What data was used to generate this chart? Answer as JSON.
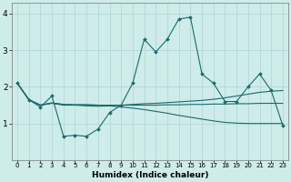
{
  "xlabel": "Humidex (Indice chaleur)",
  "bg_color": "#ceecea",
  "grid_color": "#aed4d2",
  "line_color": "#1a6b6b",
  "xlim": [
    -0.5,
    23.5
  ],
  "ylim": [
    0,
    4.3
  ],
  "xticks": [
    0,
    1,
    2,
    3,
    4,
    5,
    6,
    7,
    8,
    9,
    10,
    11,
    12,
    13,
    14,
    15,
    16,
    17,
    18,
    19,
    20,
    21,
    22,
    23
  ],
  "yticks": [
    1,
    2,
    3,
    4
  ],
  "series_main": [
    2.1,
    1.65,
    1.45,
    1.75,
    0.65,
    0.68,
    0.65,
    0.85,
    1.3,
    1.5,
    2.1,
    3.3,
    2.95,
    3.3,
    3.85,
    3.9,
    2.35,
    2.1,
    1.6,
    1.6,
    2.0,
    2.35,
    1.9,
    0.95
  ],
  "series_smooth": [
    [
      2.1,
      1.65,
      1.5,
      1.55,
      1.5,
      1.5,
      1.48,
      1.47,
      1.48,
      1.5,
      1.52,
      1.54,
      1.55,
      1.57,
      1.59,
      1.61,
      1.63,
      1.66,
      1.7,
      1.75,
      1.8,
      1.85,
      1.88,
      1.9
    ],
    [
      2.1,
      1.65,
      1.5,
      1.56,
      1.52,
      1.51,
      1.51,
      1.5,
      1.5,
      1.5,
      1.5,
      1.5,
      1.5,
      1.51,
      1.51,
      1.52,
      1.52,
      1.53,
      1.53,
      1.54,
      1.54,
      1.55,
      1.55,
      1.55
    ],
    [
      2.1,
      1.65,
      1.5,
      1.56,
      1.52,
      1.51,
      1.51,
      1.5,
      1.48,
      1.45,
      1.42,
      1.38,
      1.33,
      1.28,
      1.22,
      1.17,
      1.12,
      1.07,
      1.03,
      1.01,
      1.0,
      1.0,
      1.0,
      1.0
    ]
  ]
}
